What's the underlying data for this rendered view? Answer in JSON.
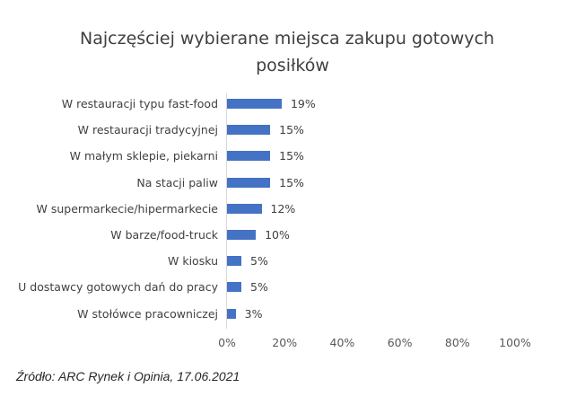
{
  "chart_data": {
    "type": "bar",
    "orientation": "horizontal",
    "title": "Najczęściej wybierane miejsca zakupu gotowych posiłków",
    "title_lines": [
      "Najczęściej wybierane miejsca zakupu gotowych",
      "posiłków"
    ],
    "categories": [
      "W restauracji typu fast-food",
      "W restauracji tradycyjnej",
      "W małym sklepie, piekarni",
      "Na stacji paliw",
      "W supermarkecie/hipermarkecie",
      "W barze/food-truck",
      "W kiosku",
      "U dostawcy gotowych dań do pracy",
      "W stołówce pracowniczej"
    ],
    "values": [
      19,
      15,
      15,
      15,
      12,
      10,
      5,
      5,
      3
    ],
    "value_labels": [
      "19%",
      "15%",
      "15%",
      "15%",
      "12%",
      "10%",
      "5%",
      "5%",
      "3%"
    ],
    "xlabel": "",
    "ylabel": "",
    "xlim": [
      0,
      100
    ],
    "x_ticks": [
      "0%",
      "20%",
      "40%",
      "60%",
      "80%",
      "100%"
    ],
    "grid": false,
    "legend": null,
    "bar_color": "#4472c4",
    "source": "Źródło: ARC Rynek i Opinia, 17.06.2021"
  }
}
